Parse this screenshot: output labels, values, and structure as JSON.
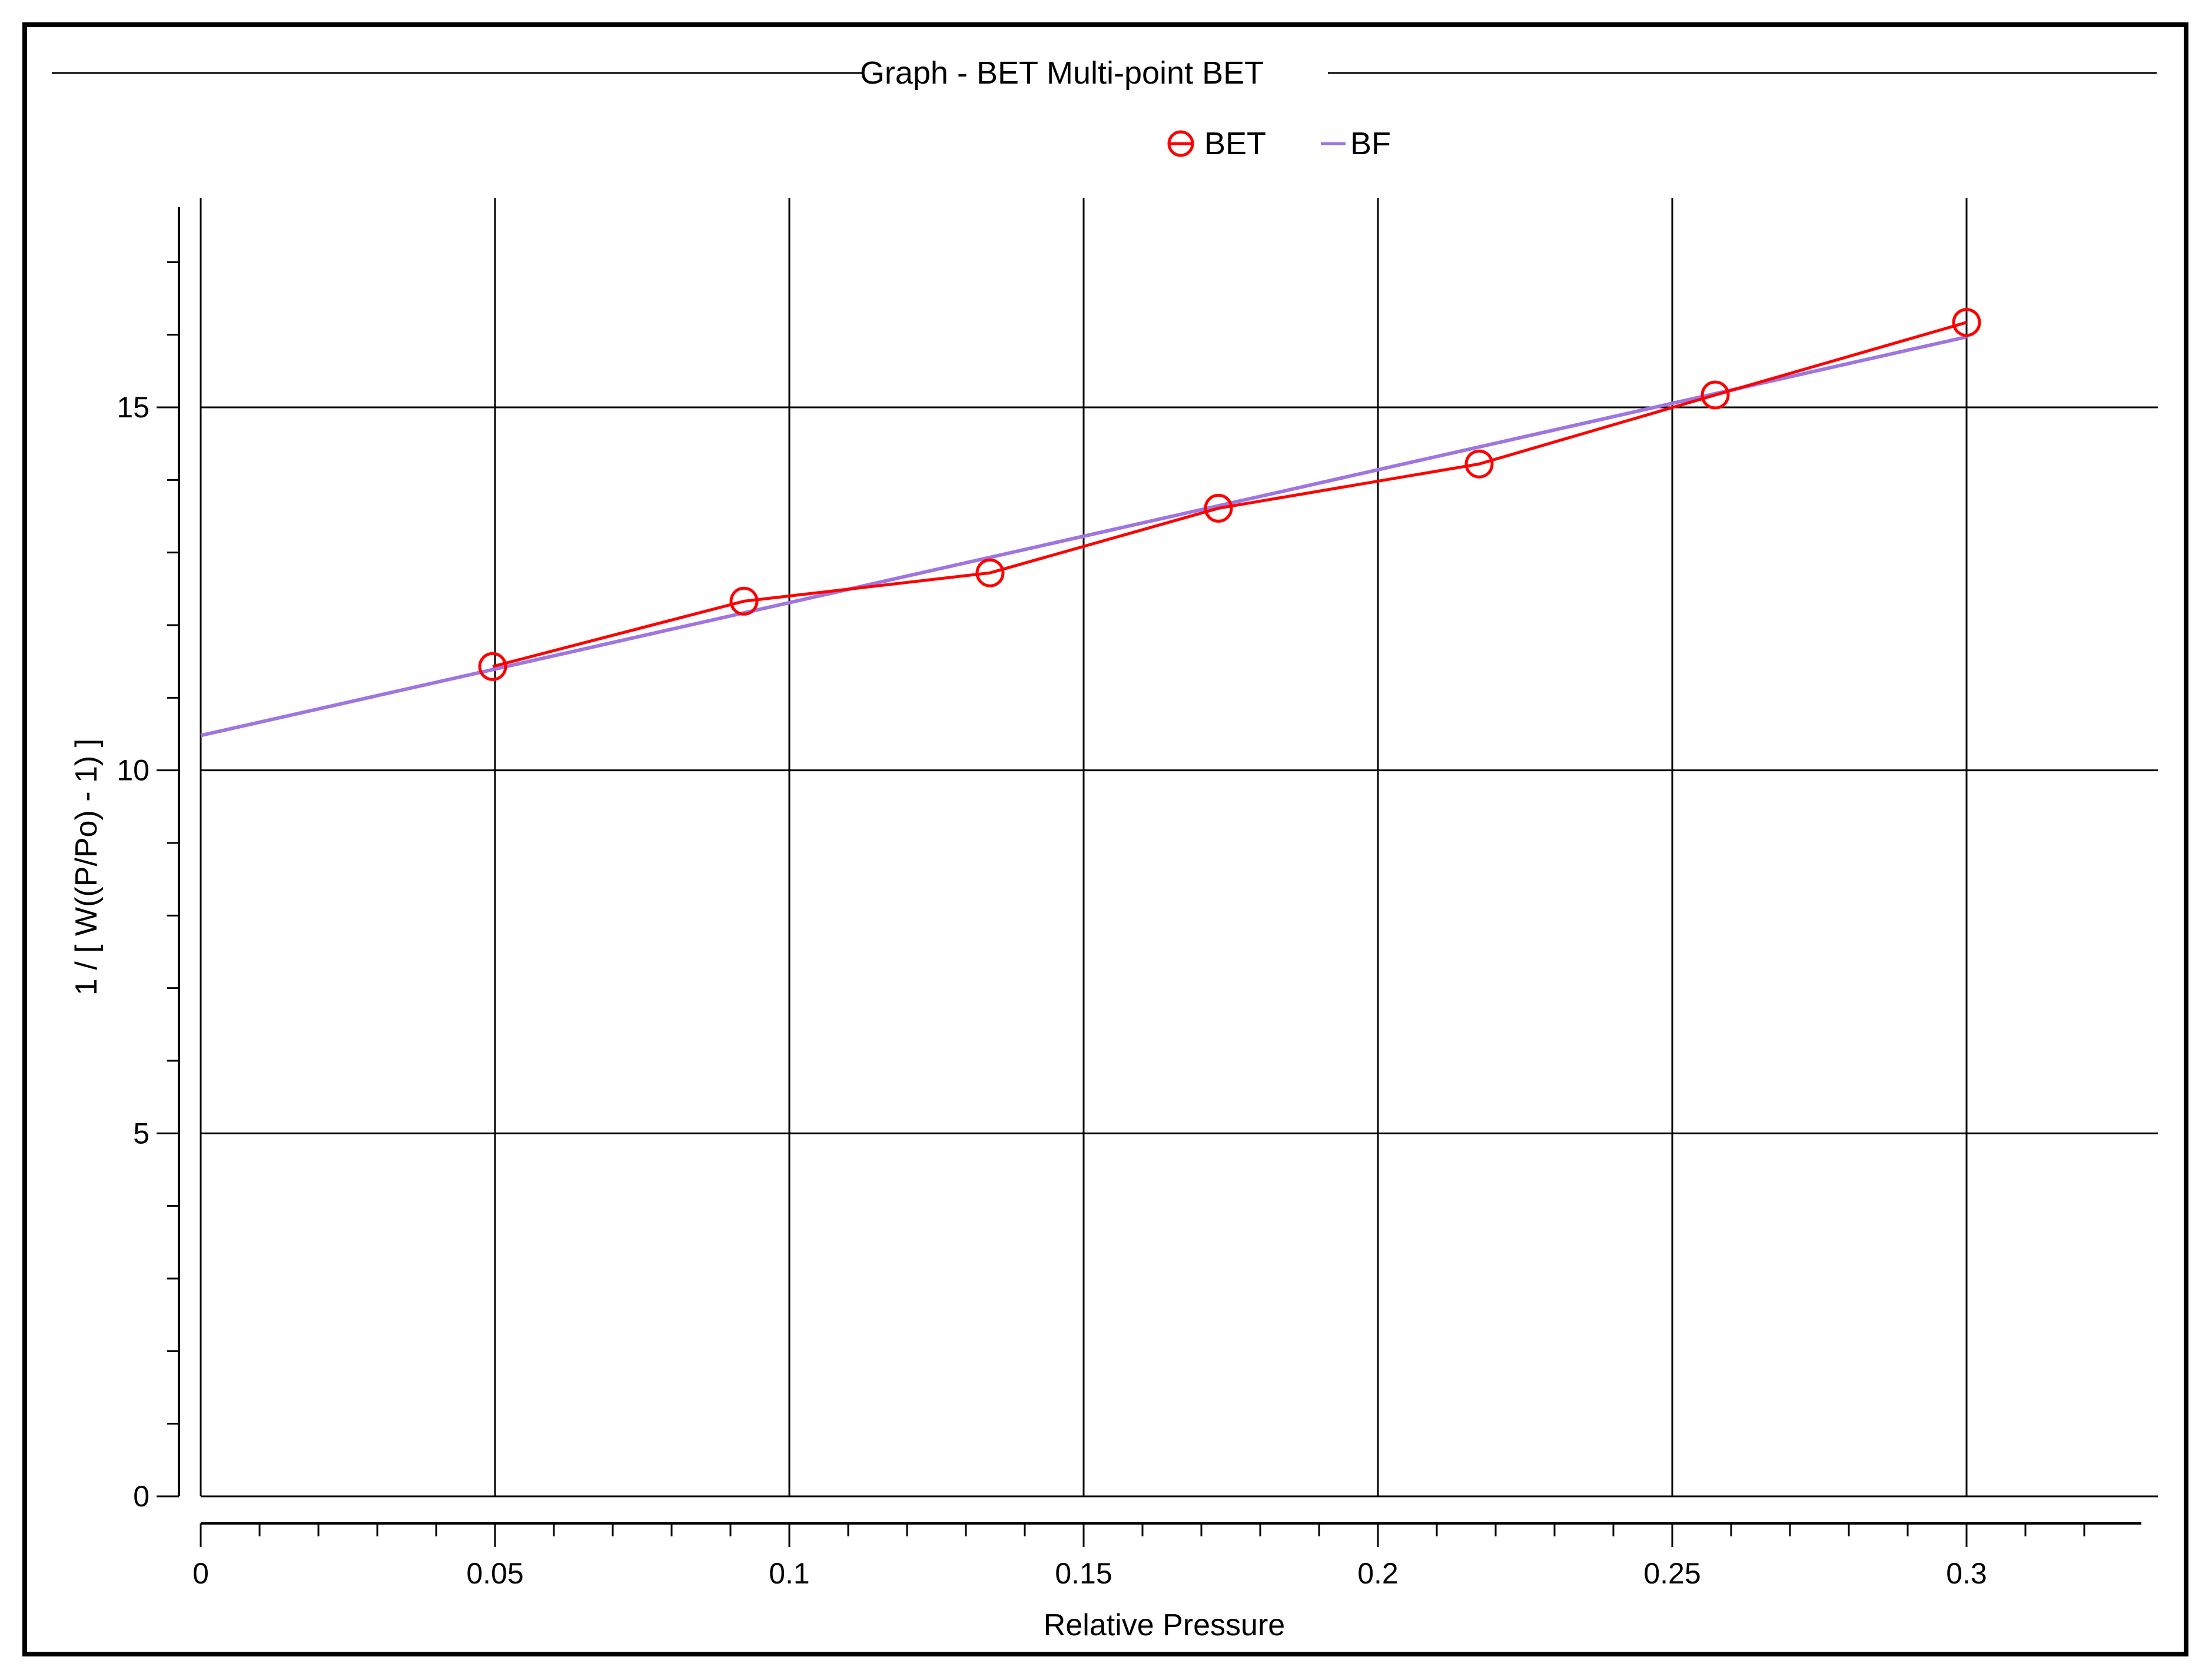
{
  "chart_data": {
    "type": "line",
    "title": "Graph - BET Multi-point BET",
    "xlabel": "Relative Pressure",
    "ylabel": "1 / [ W((P/Po) - 1) ]",
    "xlim": [
      0,
      0.33
    ],
    "ylim": [
      0,
      17.5
    ],
    "xticks": [
      0,
      0.05,
      0.1,
      0.15,
      0.2,
      0.25,
      0.3
    ],
    "xtick_labels": [
      "0",
      "0.05",
      "0.1",
      "0.15",
      "0.2",
      "0.25",
      "0.3"
    ],
    "yticks": [
      0,
      5,
      10,
      15
    ],
    "ytick_labels": [
      "0",
      "5",
      "10",
      "15"
    ],
    "x_minor_step": 0.01,
    "y_minor_step": 1,
    "grid": true,
    "legend_position": "top-center",
    "series": [
      {
        "name": "BET",
        "color": "#ff0000",
        "marker": "circle",
        "x": [
          0.0496,
          0.0923,
          0.1341,
          0.1729,
          0.2172,
          0.2573,
          0.3
        ],
        "y": [
          11.43,
          12.33,
          12.72,
          13.61,
          14.22,
          15.17,
          16.17
        ]
      },
      {
        "name": "BF",
        "color": "#9f75e0",
        "marker": "none",
        "x": [
          0,
          0.3
        ],
        "y": [
          10.48,
          15.97
        ]
      }
    ]
  }
}
